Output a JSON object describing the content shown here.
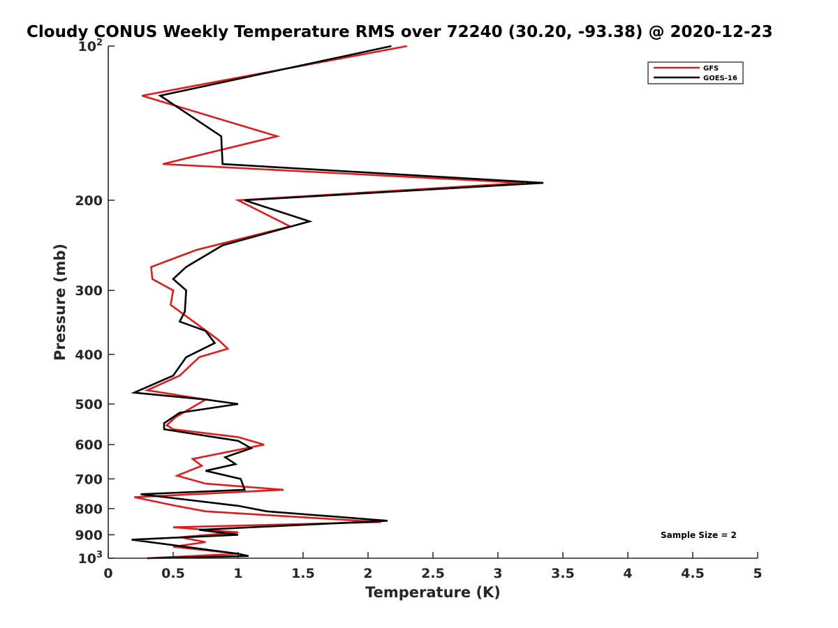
{
  "chart_data": {
    "type": "line",
    "title": "Cloudy CONUS Weekly Temperature RMS over 72240 (30.20, -93.38) @ 2020-12-23",
    "xlabel": "Temperature (K)",
    "ylabel": "Pressure (mb)",
    "xlim": [
      0,
      5
    ],
    "ylim": [
      100,
      1000
    ],
    "y_scale": "log",
    "y_reversed": true,
    "x_ticks": [
      0,
      0.5,
      1,
      1.5,
      2,
      2.5,
      3,
      3.5,
      4,
      4.5,
      5
    ],
    "x_tick_labels": [
      "0",
      "0.5",
      "1",
      "1.5",
      "2",
      "2.5",
      "3",
      "3.5",
      "4",
      "4.5",
      "5"
    ],
    "y_ticks": [
      {
        "value": 100,
        "base": "10",
        "exp": "2"
      },
      {
        "value": 200,
        "label": "200"
      },
      {
        "value": 300,
        "label": "300"
      },
      {
        "value": 400,
        "label": "400"
      },
      {
        "value": 500,
        "label": "500"
      },
      {
        "value": 600,
        "label": "600"
      },
      {
        "value": 700,
        "label": "700"
      },
      {
        "value": 800,
        "label": "800"
      },
      {
        "value": 900,
        "label": "900"
      },
      {
        "value": 1000,
        "base": "10",
        "exp": "3"
      }
    ],
    "legend_position": "top-right",
    "grid": false,
    "annotation": "Sample Size = 2",
    "series": [
      {
        "name": "GFS",
        "color": "#e31a1c",
        "points": [
          [
            2.3,
            100
          ],
          [
            0.26,
            125
          ],
          [
            1.3,
            150
          ],
          [
            0.42,
            170
          ],
          [
            3.2,
            185
          ],
          [
            1.0,
            200
          ],
          [
            1.4,
            225
          ],
          [
            0.68,
            250
          ],
          [
            0.33,
            270
          ],
          [
            0.34,
            285
          ],
          [
            0.5,
            300
          ],
          [
            0.48,
            320
          ],
          [
            0.85,
            375
          ],
          [
            0.92,
            390
          ],
          [
            0.7,
            405
          ],
          [
            0.55,
            440
          ],
          [
            0.3,
            470
          ],
          [
            0.75,
            490
          ],
          [
            0.52,
            530
          ],
          [
            0.45,
            550
          ],
          [
            0.5,
            560
          ],
          [
            1.0,
            580
          ],
          [
            1.2,
            600
          ],
          [
            0.65,
            640
          ],
          [
            0.72,
            660
          ],
          [
            0.53,
            690
          ],
          [
            0.75,
            715
          ],
          [
            1.35,
            735
          ],
          [
            0.2,
            760
          ],
          [
            0.52,
            790
          ],
          [
            0.75,
            810
          ],
          [
            2.1,
            850
          ],
          [
            0.5,
            870
          ],
          [
            1.0,
            890
          ],
          [
            0.55,
            910
          ],
          [
            0.75,
            930
          ],
          [
            0.5,
            950
          ],
          [
            1.0,
            980
          ],
          [
            0.3,
            1000
          ]
        ]
      },
      {
        "name": "GOES-16",
        "color": "#000000",
        "points": [
          [
            2.18,
            100
          ],
          [
            0.4,
            125
          ],
          [
            0.87,
            150
          ],
          [
            0.88,
            170
          ],
          [
            3.35,
            185
          ],
          [
            1.05,
            200
          ],
          [
            1.55,
            220
          ],
          [
            0.88,
            245
          ],
          [
            0.6,
            270
          ],
          [
            0.5,
            285
          ],
          [
            0.6,
            300
          ],
          [
            0.59,
            330
          ],
          [
            0.55,
            345
          ],
          [
            0.75,
            360
          ],
          [
            0.82,
            380
          ],
          [
            0.6,
            405
          ],
          [
            0.5,
            440
          ],
          [
            0.2,
            475
          ],
          [
            0.75,
            490
          ],
          [
            1.0,
            500
          ],
          [
            0.55,
            520
          ],
          [
            0.43,
            545
          ],
          [
            0.43,
            560
          ],
          [
            1.0,
            590
          ],
          [
            1.1,
            610
          ],
          [
            0.9,
            635
          ],
          [
            0.98,
            655
          ],
          [
            0.75,
            675
          ],
          [
            1.02,
            700
          ],
          [
            1.05,
            735
          ],
          [
            0.25,
            750
          ],
          [
            1.0,
            790
          ],
          [
            1.22,
            810
          ],
          [
            2.15,
            845
          ],
          [
            0.7,
            880
          ],
          [
            1.0,
            900
          ],
          [
            0.18,
            920
          ],
          [
            1.0,
            980
          ],
          [
            1.08,
            990
          ],
          [
            0.3,
            1000
          ]
        ]
      }
    ]
  }
}
